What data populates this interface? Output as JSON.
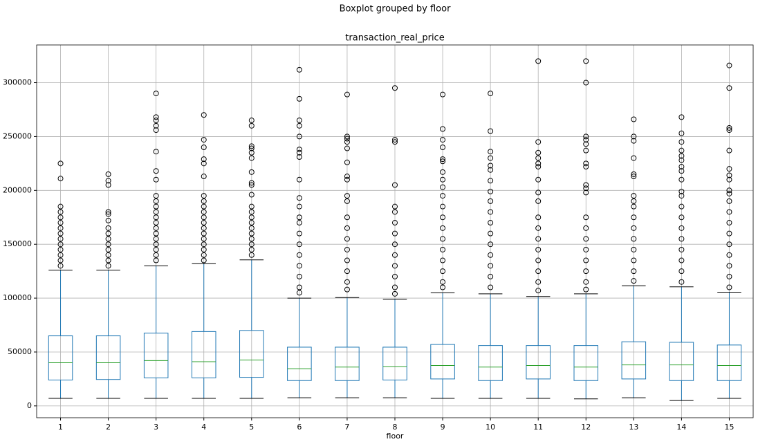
{
  "chart_data": {
    "type": "box",
    "title": "Boxplot grouped by floor",
    "subtitle": "transaction_real_price",
    "x_label": "floor",
    "categories": [
      "1",
      "2",
      "3",
      "4",
      "5",
      "6",
      "7",
      "8",
      "9",
      "10",
      "11",
      "12",
      "13",
      "14",
      "15"
    ],
    "boxes": [
      {
        "whislo": 7000,
        "q1": 24000,
        "med": 40000,
        "q3": 65000,
        "whishi": 126000,
        "fliers": [
          225000,
          211000,
          185000,
          180000,
          175000,
          170000,
          165000,
          160000,
          155000,
          150000,
          145000,
          140000,
          135000,
          130000
        ]
      },
      {
        "whislo": 7000,
        "q1": 24500,
        "med": 40000,
        "q3": 65000,
        "whishi": 126000,
        "fliers": [
          215000,
          209000,
          205000,
          180000,
          178000,
          172000,
          165000,
          160000,
          155000,
          150000,
          145000,
          140000,
          135000,
          130000
        ]
      },
      {
        "whislo": 7000,
        "q1": 26000,
        "med": 42000,
        "q3": 67500,
        "whishi": 130000,
        "fliers": [
          290000,
          268000,
          265000,
          260000,
          256000,
          236000,
          218000,
          210000,
          195000,
          190000,
          185000,
          180000,
          175000,
          170000,
          165000,
          160000,
          155000,
          150000,
          145000,
          140000,
          135000
        ]
      },
      {
        "whislo": 7000,
        "q1": 26000,
        "med": 41000,
        "q3": 69000,
        "whishi": 132000,
        "fliers": [
          270000,
          247000,
          240000,
          229000,
          225000,
          213000,
          195000,
          190000,
          185000,
          180000,
          175000,
          170000,
          165000,
          160000,
          155000,
          150000,
          145000,
          140000,
          135000
        ]
      },
      {
        "whislo": 7000,
        "q1": 26500,
        "med": 42500,
        "q3": 70000,
        "whishi": 135500,
        "fliers": [
          265000,
          260000,
          241000,
          239000,
          235000,
          230000,
          217000,
          207000,
          205000,
          196000,
          185000,
          180000,
          175000,
          170000,
          165000,
          160000,
          155000,
          150000,
          145000,
          140000
        ]
      },
      {
        "whislo": 7500,
        "q1": 23500,
        "med": 34500,
        "q3": 54500,
        "whishi": 100000,
        "fliers": [
          312000,
          285000,
          265000,
          260000,
          250000,
          238000,
          235000,
          231000,
          210000,
          193000,
          185000,
          175000,
          170000,
          160000,
          150000,
          140000,
          130000,
          120000,
          110000,
          105000
        ]
      },
      {
        "whislo": 7500,
        "q1": 23500,
        "med": 36000,
        "q3": 54500,
        "whishi": 100500,
        "fliers": [
          289000,
          250000,
          248000,
          245000,
          239000,
          226000,
          213000,
          210000,
          195000,
          190000,
          175000,
          165000,
          155000,
          145000,
          135000,
          125000,
          115000,
          108000
        ]
      },
      {
        "whislo": 7500,
        "q1": 24000,
        "med": 36500,
        "q3": 54500,
        "whishi": 99000,
        "fliers": [
          295000,
          247000,
          245000,
          205000,
          185000,
          180000,
          170000,
          160000,
          150000,
          140000,
          130000,
          120000,
          110000,
          104000
        ]
      },
      {
        "whislo": 7000,
        "q1": 25000,
        "med": 37500,
        "q3": 57000,
        "whishi": 105000,
        "fliers": [
          289000,
          257000,
          247000,
          240000,
          229000,
          227000,
          217000,
          210000,
          203000,
          195000,
          185000,
          175000,
          165000,
          155000,
          145000,
          135000,
          125000,
          115000,
          110000
        ]
      },
      {
        "whislo": 7000,
        "q1": 23500,
        "med": 36000,
        "q3": 56000,
        "whishi": 104000,
        "fliers": [
          290000,
          255000,
          236000,
          230000,
          223000,
          219000,
          209000,
          199000,
          190000,
          180000,
          170000,
          160000,
          150000,
          140000,
          130000,
          120000,
          110000
        ]
      },
      {
        "whislo": 7000,
        "q1": 25000,
        "med": 37500,
        "q3": 56000,
        "whishi": 101500,
        "fliers": [
          320000,
          245000,
          235000,
          230000,
          225000,
          222000,
          210000,
          198000,
          190000,
          175000,
          165000,
          155000,
          145000,
          135000,
          125000,
          115000,
          107000
        ]
      },
      {
        "whislo": 6500,
        "q1": 23500,
        "med": 36000,
        "q3": 56000,
        "whishi": 104000,
        "fliers": [
          320000,
          300000,
          250000,
          247000,
          243000,
          237000,
          225000,
          222000,
          205000,
          202000,
          198000,
          175000,
          165000,
          155000,
          145000,
          135000,
          125000,
          115000,
          108000
        ]
      },
      {
        "whislo": 7500,
        "q1": 25000,
        "med": 38000,
        "q3": 59500,
        "whishi": 111500,
        "fliers": [
          266000,
          250000,
          246000,
          230000,
          215000,
          213000,
          195000,
          190000,
          185000,
          175000,
          165000,
          155000,
          145000,
          135000,
          125000,
          116000
        ]
      },
      {
        "whislo": 5000,
        "q1": 23500,
        "med": 38000,
        "q3": 59000,
        "whishi": 110500,
        "fliers": [
          268000,
          253000,
          245000,
          237000,
          232000,
          228000,
          222000,
          218000,
          210000,
          199000,
          195000,
          185000,
          175000,
          165000,
          155000,
          145000,
          135000,
          125000,
          115000
        ]
      },
      {
        "whislo": 7000,
        "q1": 23500,
        "med": 37500,
        "q3": 56500,
        "whishi": 105500,
        "fliers": [
          316000,
          295000,
          258000,
          256000,
          237000,
          220000,
          214000,
          210000,
          200000,
          197000,
          190000,
          180000,
          170000,
          160000,
          150000,
          140000,
          130000,
          120000,
          110000
        ]
      }
    ],
    "box_color": "#1f77b4",
    "median_color": "#2ca02c",
    "cap_color": "#000000",
    "flier_color": "#000000",
    "ylim": [
      -11000,
      335000
    ],
    "yticks": [
      0,
      50000,
      100000,
      150000,
      200000,
      250000,
      300000
    ],
    "grid": true
  }
}
